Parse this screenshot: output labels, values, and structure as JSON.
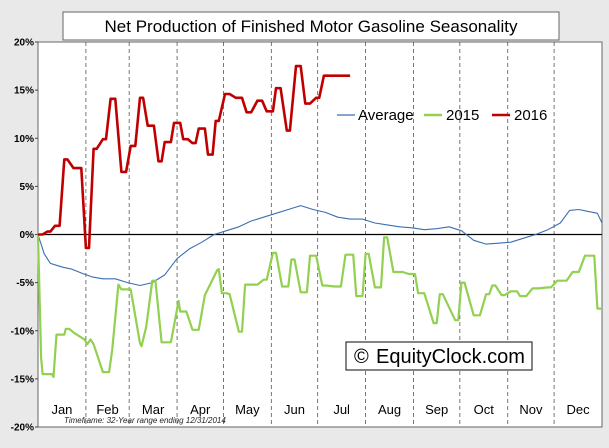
{
  "chart_data": {
    "type": "line",
    "title": "Net Production of Finished Motor Gasoline Seasonality",
    "xlabel": "",
    "ylabel": "",
    "months": [
      "Jan",
      "Feb",
      "Mar",
      "Apr",
      "May",
      "Jun",
      "Jul",
      "Aug",
      "Sep",
      "Oct",
      "Nov",
      "Dec"
    ],
    "y_ticks": [
      "20%",
      "15%",
      "10%",
      "5%",
      "0%",
      "-5%",
      "-10%",
      "-15%",
      "-20%"
    ],
    "ylim": [
      -20,
      20
    ],
    "xlim_days": [
      0,
      365
    ],
    "grid": "vertical dashed at month boundaries",
    "legend_position": "top-right",
    "footnote": "Timeframe: 32-Year range ending 12/31/2014",
    "watermark": "EquityClock.com",
    "watermark_symbol": "©",
    "colors": {
      "Average": "#3c6eb4",
      "2015": "#92d050",
      "2016": "#c00000",
      "background": "#e9e9e9",
      "plot": "#ffffff"
    },
    "series": [
      {
        "name": "Average",
        "x": [
          0,
          4,
          8,
          12,
          16,
          22,
          28,
          35,
          42,
          50,
          58,
          66,
          74,
          82,
          90,
          98,
          106,
          114,
          122,
          130,
          138,
          146,
          154,
          162,
          170,
          178,
          186,
          194,
          202,
          210,
          218,
          226,
          234,
          242,
          250,
          258,
          266,
          274,
          282,
          290,
          298,
          306,
          314,
          322,
          330,
          338,
          344,
          350,
          356,
          362,
          365
        ],
        "y": [
          0.0,
          -2.0,
          -3.0,
          -3.2,
          -3.4,
          -3.6,
          -4.0,
          -4.4,
          -4.6,
          -4.6,
          -5.0,
          -5.3,
          -5.0,
          -4.2,
          -2.5,
          -1.5,
          -0.8,
          0.0,
          0.4,
          0.8,
          1.4,
          1.8,
          2.2,
          2.6,
          3.0,
          2.6,
          2.3,
          1.8,
          1.6,
          1.6,
          1.2,
          1.0,
          0.8,
          0.7,
          0.5,
          0.6,
          0.8,
          0.4,
          -0.6,
          -1.0,
          -0.9,
          -0.8,
          -0.4,
          0.0,
          0.5,
          1.2,
          2.5,
          2.6,
          2.4,
          2.2,
          1.2
        ]
      },
      {
        "name": "2015",
        "x": [
          0,
          2,
          3,
          9,
          10,
          12,
          17,
          18,
          20,
          24,
          30,
          32,
          34,
          36,
          42,
          46,
          48,
          52,
          54,
          60,
          66,
          67,
          70,
          74,
          76,
          80,
          86,
          91,
          92,
          96,
          100,
          104,
          108,
          116,
          117,
          119,
          122,
          124,
          130,
          132,
          134,
          136,
          142,
          146,
          148,
          152,
          154,
          158,
          162,
          164,
          166,
          170,
          174,
          176,
          180,
          184,
          186,
          192,
          196,
          199,
          204,
          206,
          210,
          212,
          214,
          218,
          222,
          224,
          226,
          230,
          236,
          240,
          244,
          246,
          250,
          256,
          258,
          260,
          262,
          270,
          272,
          274,
          276,
          282,
          286,
          290,
          292,
          294,
          296,
          300,
          302,
          306,
          310,
          312,
          316,
          320,
          324,
          330,
          332,
          336,
          342,
          346,
          350,
          354,
          360,
          362,
          365
        ],
        "y": [
          0,
          -12.8,
          -14.5,
          -14.5,
          -14.8,
          -10.4,
          -10.4,
          -9.8,
          -9.8,
          -10.3,
          -10.9,
          -11.4,
          -10.9,
          -11.4,
          -14.3,
          -14.3,
          -12.0,
          -5.2,
          -5.7,
          -5.7,
          -11.3,
          -11.6,
          -9.6,
          -4.8,
          -4.8,
          -11.2,
          -11.2,
          -6.9,
          -8.0,
          -8.0,
          -9.9,
          -9.9,
          -6.3,
          -3.7,
          -3.6,
          -6.1,
          -6.1,
          -6.2,
          -10.1,
          -10.1,
          -5.2,
          -5.2,
          -5.2,
          -4.7,
          -4.7,
          -1.9,
          -1.9,
          -5.4,
          -5.4,
          -2.6,
          -2.6,
          -6.0,
          -6.0,
          -2.2,
          -2.2,
          -5.3,
          -5.3,
          -5.4,
          -5.4,
          -2.1,
          -2.1,
          -6.4,
          -6.4,
          -2.0,
          -2.0,
          -5.5,
          -5.5,
          -0.3,
          -0.3,
          -3.9,
          -3.9,
          -4.1,
          -4.1,
          -6.1,
          -6.1,
          -9.2,
          -9.2,
          -6.2,
          -6.2,
          -8.9,
          -8.9,
          -5.0,
          -5.0,
          -8.4,
          -8.4,
          -6.2,
          -6.2,
          -5.3,
          -5.3,
          -6.3,
          -6.3,
          -5.9,
          -5.9,
          -6.4,
          -6.4,
          -5.6,
          -5.6,
          -5.5,
          -5.5,
          -4.8,
          -4.8,
          -3.9,
          -3.9,
          -2.2,
          -2.2,
          -7.7,
          -7.7
        ]
      },
      {
        "name": "2016",
        "x": [
          0,
          3,
          6,
          8,
          11,
          14,
          17,
          19,
          23,
          28,
          31,
          33,
          36,
          38,
          42,
          44,
          47,
          50,
          54,
          57,
          60,
          63,
          66,
          68,
          71,
          75,
          78,
          80,
          82,
          86,
          88,
          92,
          94,
          97,
          100,
          102,
          104,
          108,
          110,
          113,
          115,
          117,
          121,
          124,
          128,
          132,
          135,
          138,
          142,
          145,
          148,
          152,
          154,
          157,
          161,
          163,
          167,
          170,
          173,
          176,
          180,
          182,
          185,
          188,
          190,
          193,
          197,
          200,
          202
        ],
        "y": [
          0,
          0,
          0.3,
          0.3,
          0.9,
          0.9,
          7.8,
          7.8,
          6.9,
          6.9,
          -1.4,
          -1.4,
          8.9,
          8.9,
          9.9,
          9.9,
          14.1,
          14.1,
          6.5,
          6.5,
          9.2,
          9.2,
          14.2,
          14.2,
          11.3,
          11.3,
          7.6,
          7.6,
          9.6,
          9.6,
          11.6,
          11.6,
          9.9,
          9.9,
          9.5,
          9.5,
          11.0,
          11.0,
          8.3,
          8.3,
          11.8,
          11.8,
          14.6,
          14.6,
          14.2,
          14.2,
          12.7,
          12.7,
          13.9,
          13.9,
          12.8,
          12.8,
          15.2,
          15.2,
          10.8,
          10.8,
          17.5,
          17.5,
          13.6,
          13.6,
          14.2,
          14.2,
          16.5,
          16.5,
          16.5,
          16.5,
          16.5,
          16.5,
          16.5
        ]
      }
    ]
  }
}
